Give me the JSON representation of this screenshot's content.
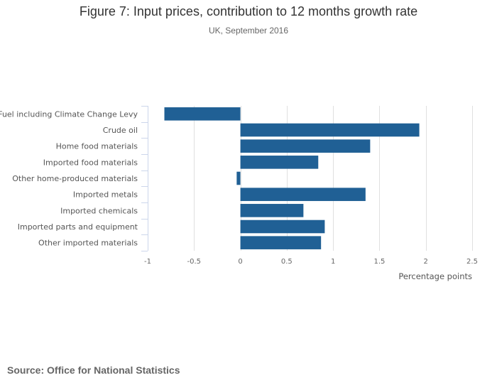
{
  "title": "Figure 7: Input prices, contribution to 12 months growth rate",
  "subtitle": "UK, September 2016",
  "source": "Source: Office for National Statistics",
  "colors": {
    "bar": "#206095",
    "grid": "#e0e0e0",
    "axis": "#ccd6eb"
  },
  "chart_data": {
    "type": "bar",
    "orientation": "horizontal",
    "title": "Figure 7: Input prices, contribution to 12 months growth rate",
    "subtitle": "UK, September 2016",
    "categories": [
      "Fuel including Climate Change Levy",
      "Crude oil",
      "Home food materials",
      "Imported food materials",
      "Other home-produced materials",
      "Imported metals",
      "Imported chemicals",
      "Imported parts and equipment",
      "Other imported materials"
    ],
    "values": [
      -0.82,
      1.93,
      1.4,
      0.84,
      -0.04,
      1.35,
      0.68,
      0.91,
      0.87
    ],
    "xlabel": "Percentage points",
    "ylabel": "",
    "xlim": [
      -1,
      2.5
    ],
    "ticks": [
      -1,
      -0.5,
      0,
      0.5,
      1,
      1.5,
      2,
      2.5
    ],
    "tick_labels": [
      "-1",
      "-0.5",
      "0",
      "0.5",
      "1",
      "1.5",
      "2",
      "2.5"
    ],
    "grid": true,
    "legend": "none"
  }
}
